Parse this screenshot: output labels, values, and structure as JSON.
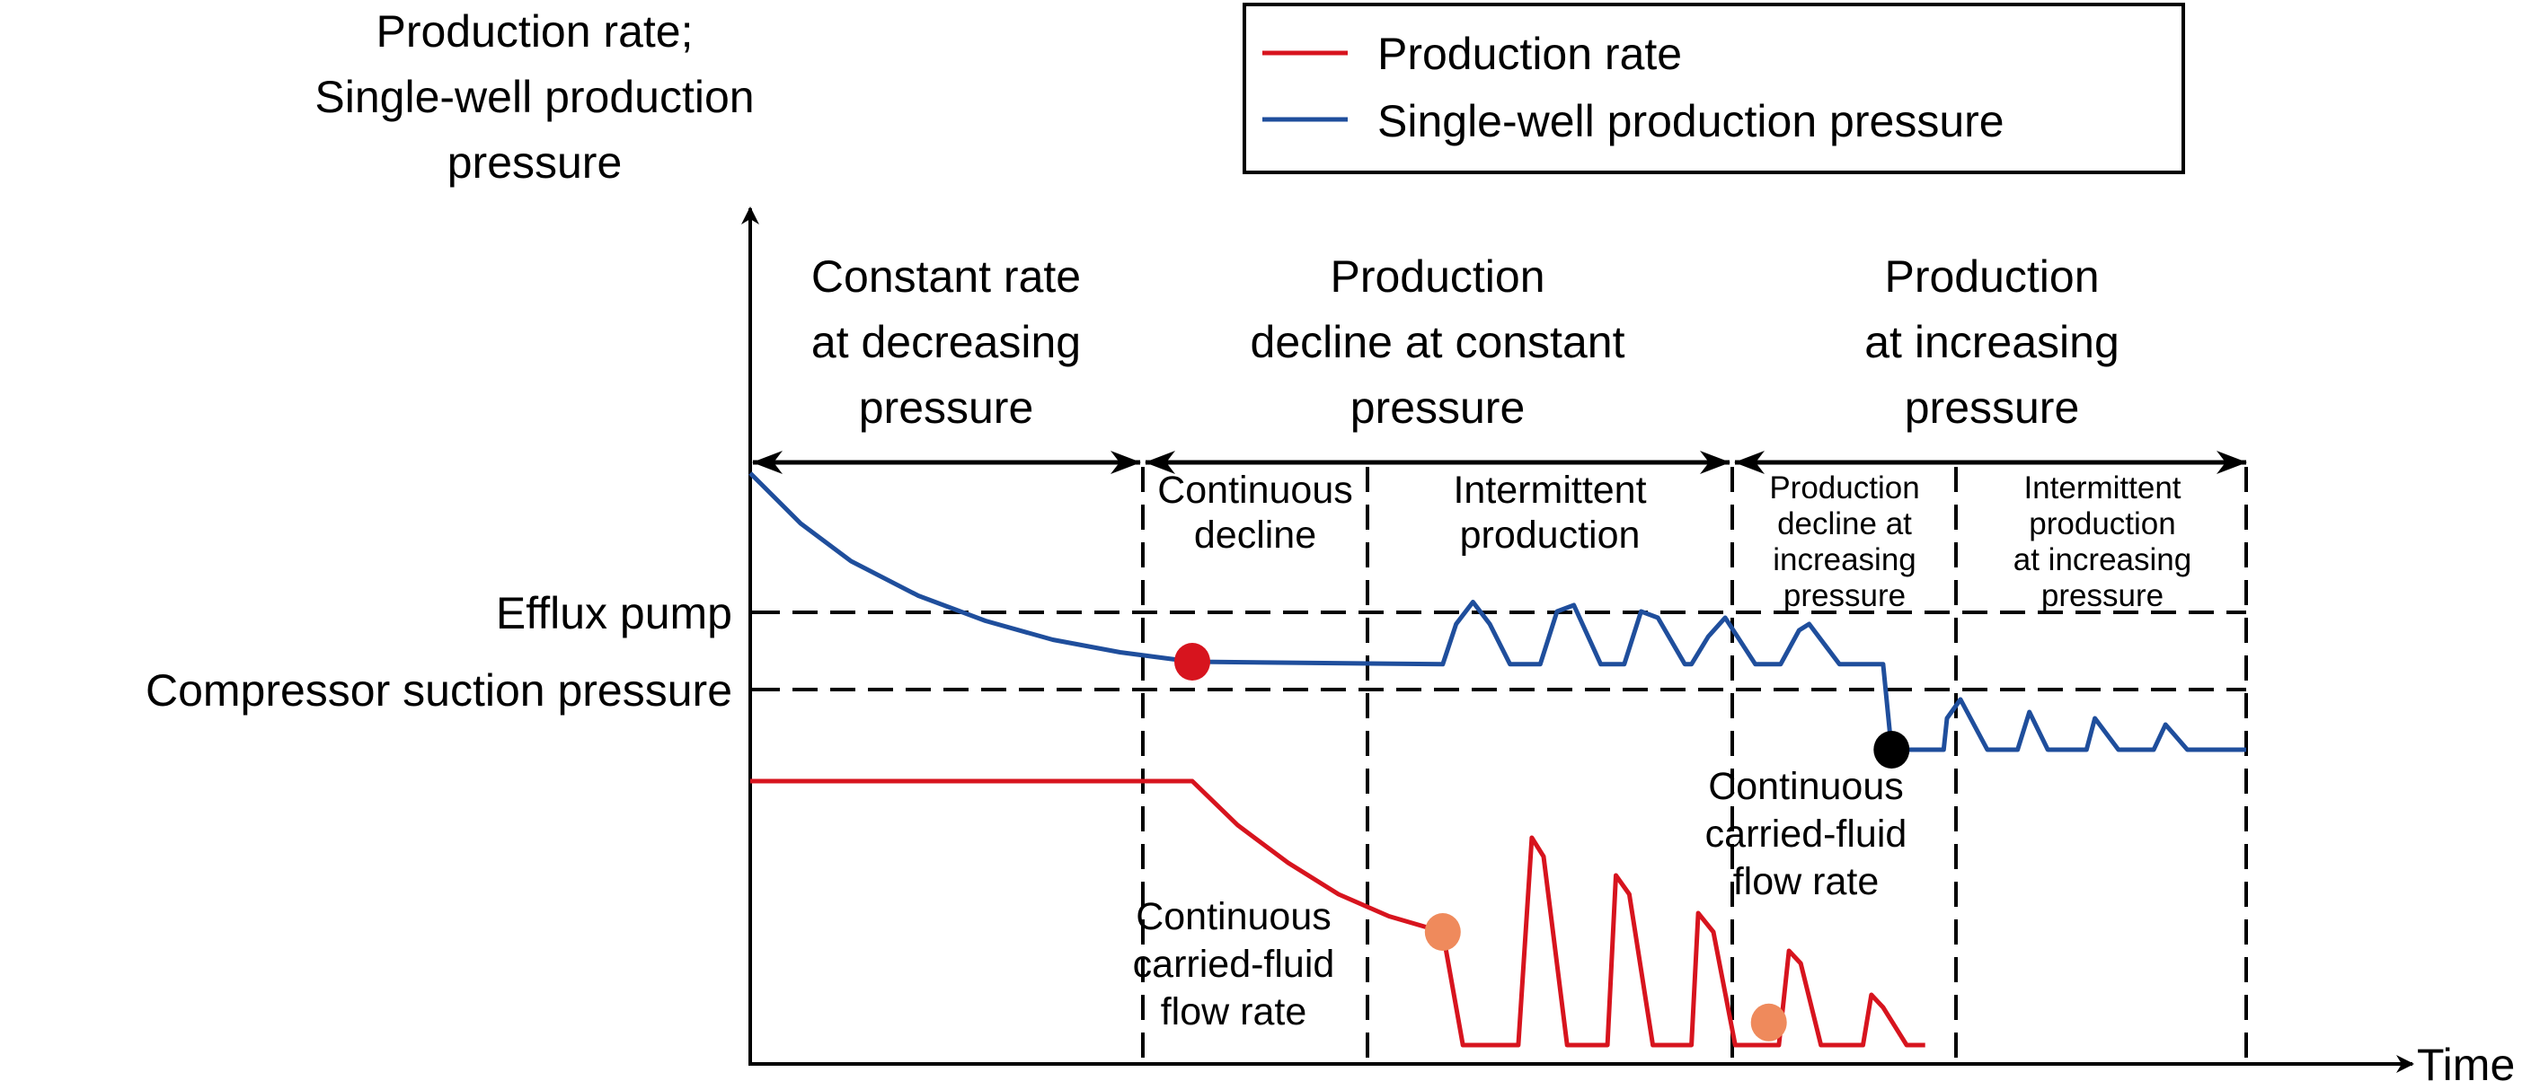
{
  "chart_data": {
    "type": "line",
    "title": "",
    "ylabel": [
      "Production rate;",
      "Single-well production",
      "pressure"
    ],
    "xlabel": "Time",
    "y_reference_lines": [
      {
        "name": "efflux-pump",
        "label": "Efflux pump"
      },
      {
        "name": "compressor-suction-pressure",
        "label": "Compressor suction pressure"
      }
    ],
    "legend": {
      "position": "top-right",
      "entries": [
        {
          "label": "Production rate",
          "color": "#d7141e"
        },
        {
          "label": "Single-well production pressure",
          "color": "#1f4e9c"
        }
      ]
    },
    "stages": [
      {
        "label": [
          "Constant rate",
          "at decreasing",
          "pressure"
        ]
      },
      {
        "label": [
          "Production",
          "decline at constant",
          "pressure"
        ]
      },
      {
        "label": [
          "Production",
          "at increasing",
          "pressure"
        ]
      }
    ],
    "substages": [
      {
        "label": [
          "Continuous",
          "decline"
        ]
      },
      {
        "label": [
          "Intermittent",
          "production"
        ]
      },
      {
        "label": [
          "Production",
          "decline at",
          "increasing",
          "pressure"
        ]
      },
      {
        "label": [
          "Intermittent",
          "production",
          "at increasing",
          "pressure"
        ]
      }
    ],
    "annotations": [
      {
        "name": "carried-fluid-label-1",
        "label": [
          "Continuous",
          "carried-fluid",
          "flow rate"
        ]
      },
      {
        "name": "carried-fluid-label-2",
        "label": [
          "Continuous",
          "carried-fluid",
          "flow rate"
        ]
      }
    ],
    "markers": [
      {
        "name": "efflux-pump-reached",
        "color": "#d7141e",
        "series": "Single-well production pressure"
      },
      {
        "name": "compressor-suction-reached",
        "color": "#000000",
        "series": "Single-well production pressure"
      },
      {
        "name": "carried-fluid-threshold-1",
        "color": "#ef8a5c",
        "series": "Production rate"
      },
      {
        "name": "carried-fluid-threshold-2",
        "color": "#ef8a5c",
        "series": "Production rate"
      }
    ],
    "axis_units": "schematic (no numeric ticks)",
    "x_range": [
      0,
      100
    ],
    "y_range": [
      0,
      100
    ],
    "stage_boundaries_x": [
      0,
      26.3,
      56.1,
      100
    ],
    "substage_boundaries_x": [
      26.3,
      41.2,
      56.1,
      71.0,
      100
    ],
    "reference_levels_y": {
      "efflux_pump": 63.6,
      "compressor_suction": 50.0
    },
    "series": [
      {
        "name": "Single-well production pressure",
        "color": "#1f4e9c",
        "points": [
          [
            0,
            94
          ],
          [
            3,
            86
          ],
          [
            6,
            80
          ],
          [
            10,
            74.5
          ],
          [
            14,
            70.5
          ],
          [
            18,
            67.5
          ],
          [
            22,
            65.5
          ],
          [
            26.3,
            64
          ],
          [
            41.2,
            63.6
          ],
          [
            42,
            70
          ],
          [
            43,
            73.5
          ],
          [
            44,
            70
          ],
          [
            45.2,
            63.6
          ],
          [
            47,
            63.6
          ],
          [
            48,
            72
          ],
          [
            49,
            73
          ],
          [
            50.6,
            63.6
          ],
          [
            52,
            63.6
          ],
          [
            53,
            72
          ],
          [
            54,
            71
          ],
          [
            55.6,
            63.6
          ],
          [
            56,
            63.6
          ],
          [
            57,
            68
          ],
          [
            58,
            71
          ],
          [
            59.8,
            63.6
          ],
          [
            61.3,
            63.6
          ],
          [
            62.4,
            69
          ],
          [
            63,
            70
          ],
          [
            64.8,
            63.6
          ],
          [
            67.4,
            63.6
          ],
          [
            67.9,
            50
          ],
          [
            71,
            50
          ],
          [
            71.2,
            55
          ],
          [
            72,
            58
          ],
          [
            73.6,
            50
          ],
          [
            75.4,
            50
          ],
          [
            76.1,
            56
          ],
          [
            77.2,
            50
          ],
          [
            79.5,
            50
          ],
          [
            80,
            55
          ],
          [
            81.4,
            50
          ],
          [
            83.5,
            50
          ],
          [
            84.2,
            54
          ],
          [
            85.5,
            50
          ],
          [
            89,
            50
          ]
        ]
      },
      {
        "name": "Production rate",
        "color": "#d7141e",
        "points": [
          [
            0,
            45
          ],
          [
            26.3,
            45
          ],
          [
            29,
            38
          ],
          [
            32,
            32
          ],
          [
            35,
            27
          ],
          [
            38,
            23.5
          ],
          [
            41.2,
            21
          ],
          [
            42.4,
            3
          ],
          [
            45.7,
            3
          ],
          [
            46.5,
            36
          ],
          [
            47.2,
            33
          ],
          [
            48.6,
            3
          ],
          [
            51,
            3
          ],
          [
            51.5,
            30
          ],
          [
            52.3,
            27
          ],
          [
            53.7,
            3
          ],
          [
            56,
            3
          ],
          [
            56.4,
            24
          ],
          [
            57.3,
            21
          ],
          [
            58.6,
            3
          ],
          [
            61.2,
            3
          ],
          [
            61.8,
            18
          ],
          [
            62.5,
            16
          ],
          [
            63.7,
            3
          ],
          [
            66.2,
            3
          ],
          [
            66.7,
            11
          ],
          [
            67.4,
            9
          ],
          [
            68.8,
            3
          ],
          [
            69.9,
            3
          ]
        ]
      }
    ]
  }
}
